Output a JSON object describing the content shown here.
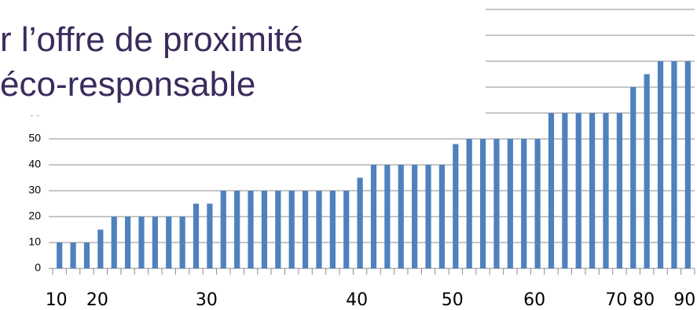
{
  "chart_data": {
    "type": "bar",
    "title_lines": [
      "r l’offre de proximité",
      "éco-responsable"
    ],
    "categories": [
      "10",
      null,
      null,
      "20",
      null,
      null,
      null,
      null,
      null,
      null,
      null,
      "30",
      null,
      null,
      null,
      null,
      null,
      null,
      null,
      null,
      null,
      null,
      "40",
      null,
      null,
      null,
      null,
      null,
      null,
      "50",
      null,
      null,
      null,
      null,
      null,
      "60",
      null,
      null,
      null,
      null,
      null,
      "70",
      null,
      "80",
      null,
      null,
      "90"
    ],
    "values": [
      10,
      10,
      10,
      15,
      20,
      20,
      20,
      20,
      20,
      20,
      25,
      25,
      30,
      30,
      30,
      30,
      30,
      30,
      30,
      30,
      30,
      30,
      35,
      40,
      40,
      40,
      40,
      40,
      40,
      48,
      50,
      50,
      50,
      50,
      50,
      50,
      60,
      60,
      60,
      60,
      60,
      60,
      70,
      75,
      80,
      80,
      80
    ],
    "color": "#4f81bd",
    "ylim": [
      0,
      100
    ],
    "yticks": [
      0,
      10,
      20,
      30,
      40,
      50,
      60,
      70,
      80,
      90,
      100
    ],
    "grid": true
  }
}
